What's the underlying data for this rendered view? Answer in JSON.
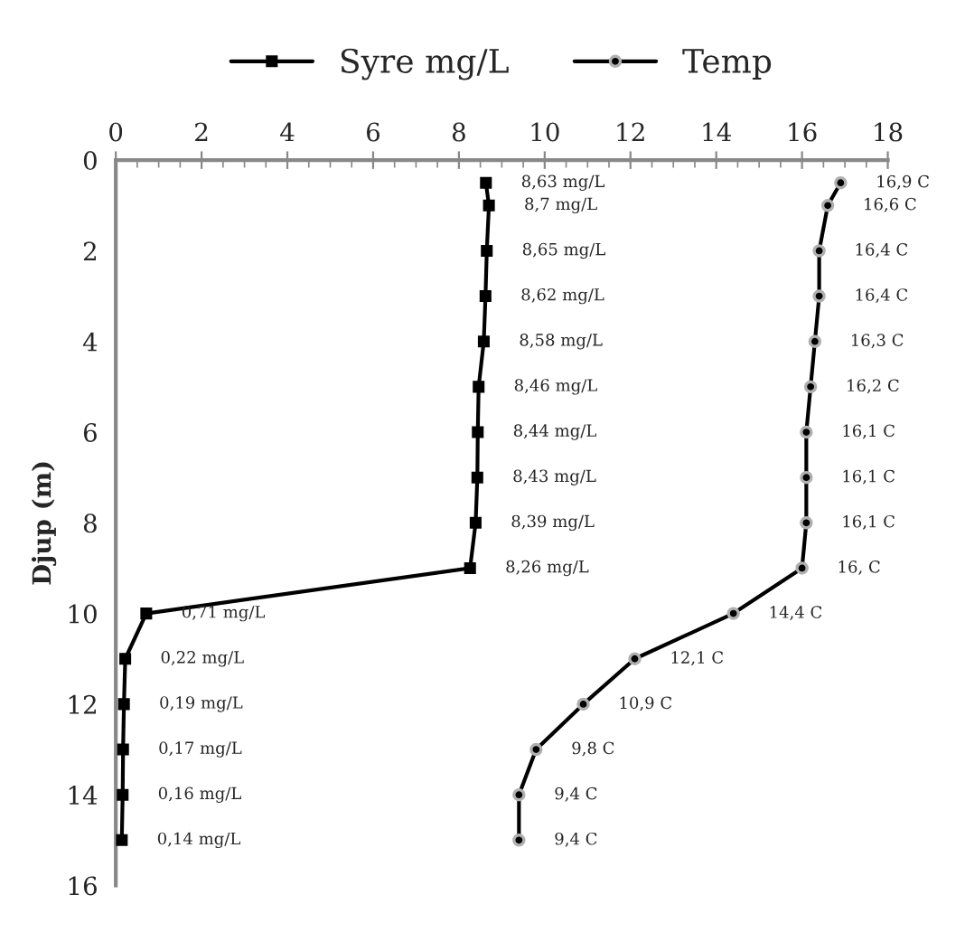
{
  "chart_data": {
    "type": "line",
    "orientation": "horizontal",
    "ylabel": "Djup (m)",
    "x": [
      0.5,
      1,
      2,
      3,
      4,
      5,
      6,
      7,
      8,
      9,
      10,
      11,
      12,
      13,
      14,
      15
    ],
    "series": [
      {
        "name": "Syre mg/L",
        "color": "#000000",
        "marker": "square",
        "values": [
          8.63,
          8.7,
          8.65,
          8.62,
          8.58,
          8.46,
          8.44,
          8.43,
          8.39,
          8.26,
          0.71,
          0.22,
          0.19,
          0.17,
          0.16,
          0.14
        ],
        "value_labels": [
          "8,63 mg/L",
          "8,7 mg/L",
          "8,65 mg/L",
          "8,62 mg/L",
          "8,58 mg/L",
          "8,46 mg/L",
          "8,44 mg/L",
          "8,43 mg/L",
          "8,39 mg/L",
          "8,26 mg/L",
          "0,71 mg/L",
          "0,22 mg/L",
          "0,19 mg/L",
          "0,17 mg/L",
          "0,16 mg/L",
          "0,14 mg/L"
        ]
      },
      {
        "name": "Temp",
        "color": "#000000",
        "marker": "circle",
        "values": [
          16.9,
          16.6,
          16.4,
          16.4,
          16.3,
          16.2,
          16.1,
          16.1,
          16.1,
          16.0,
          14.4,
          12.1,
          10.9,
          9.8,
          9.4,
          9.4
        ],
        "value_labels": [
          "16,9 C",
          "16,6 C",
          "16,4 C",
          "16,4 C",
          "16,3 C",
          "16,2 C",
          "16,1 C",
          "16,1 C",
          "16,1 C",
          "16, C",
          "14,4 C",
          "12,1 C",
          "10,9 C",
          "9,8 C",
          "9,4 C",
          "9,4 C"
        ]
      }
    ],
    "xlim": [
      0,
      18
    ],
    "xticks": [
      0,
      2,
      4,
      6,
      8,
      10,
      12,
      14,
      16,
      18
    ],
    "ylim": [
      16,
      0
    ],
    "yticks": [
      0,
      2,
      4,
      6,
      8,
      10,
      12,
      14,
      16
    ],
    "grid": false,
    "legend": "top",
    "line_style": "solid"
  }
}
